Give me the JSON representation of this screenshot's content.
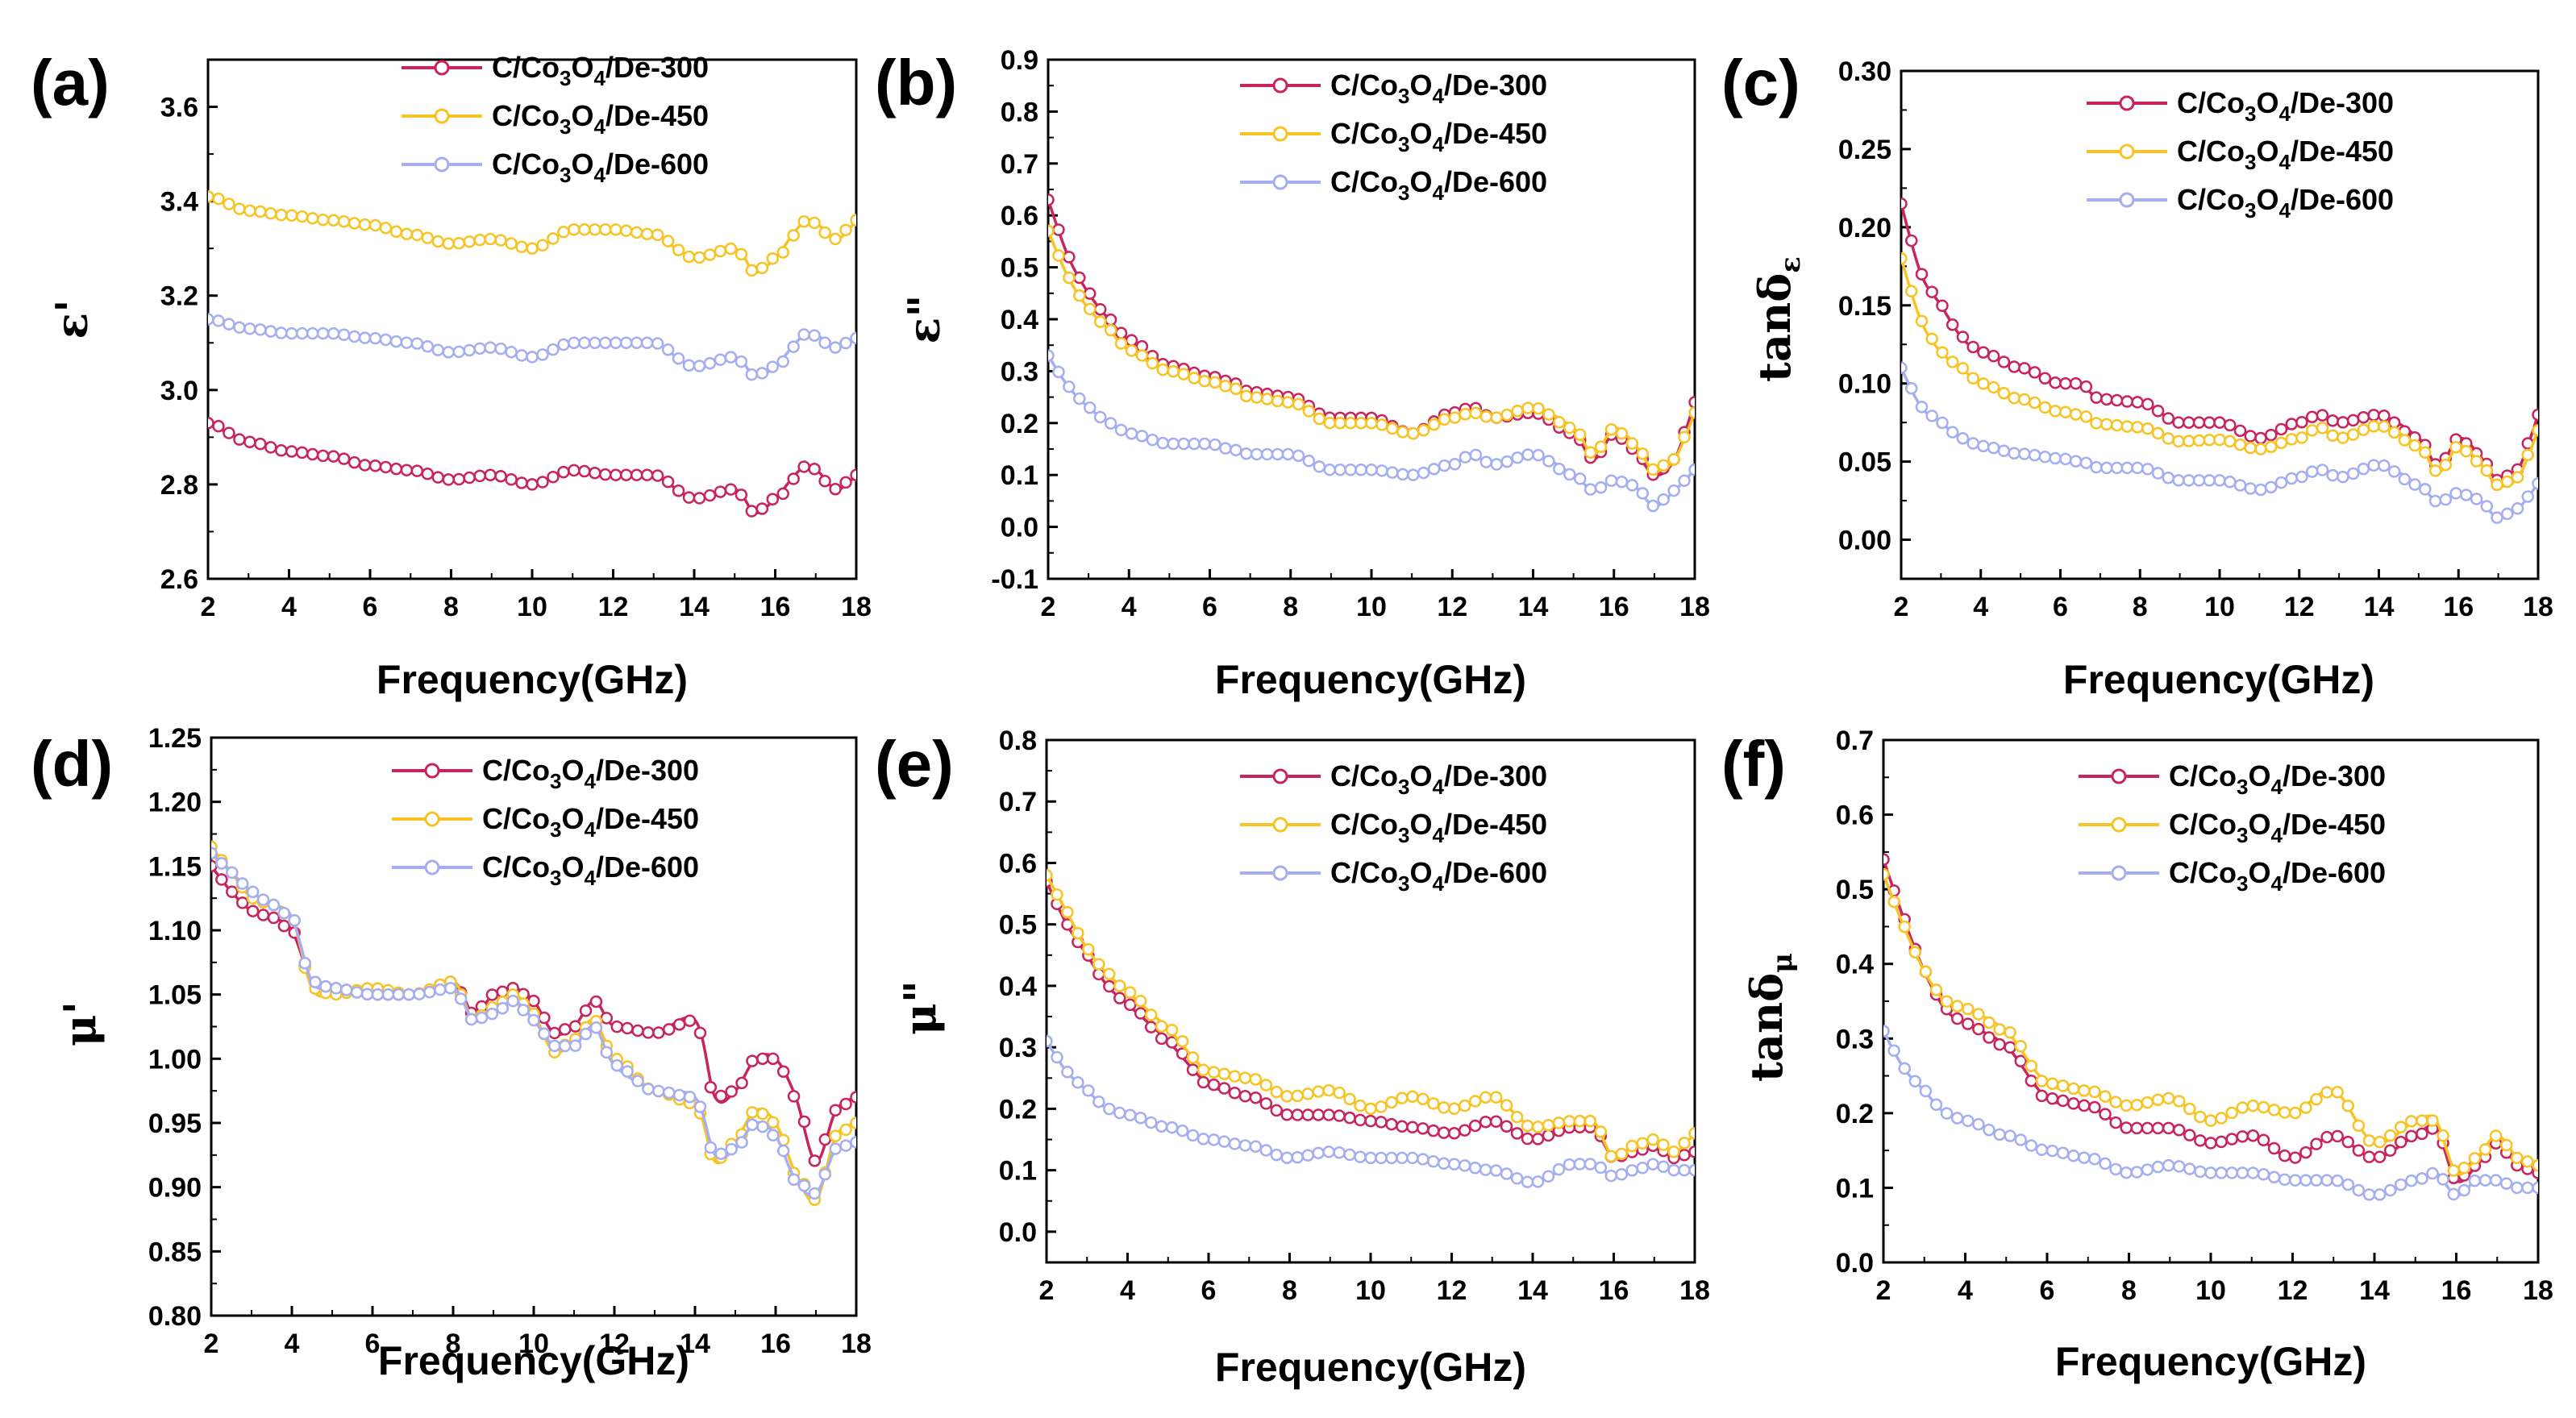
{
  "figure": {
    "panels": [
      "(a)",
      "(b)",
      "(c)",
      "(d)",
      "(e)",
      "(f)"
    ]
  },
  "legend_labels": [
    "C/Co3O4/De-300",
    "C/Co3O4/De-450",
    "C/Co3O4/De-600"
  ],
  "series_colors": {
    "De-300": "#c8245e",
    "De-450": "#f7c325",
    "De-600": "#a5aef0"
  },
  "chart_data": [
    {
      "type": "line",
      "panel": "(a)",
      "xlabel": "Frequency(GHz)",
      "ylabel": "ε'",
      "xlim": [
        2,
        18
      ],
      "ylim": [
        2.6,
        3.7
      ],
      "xticks": [
        2,
        4,
        6,
        8,
        10,
        12,
        14,
        16,
        18
      ],
      "yticks": [
        2.6,
        2.8,
        3.0,
        3.2,
        3.4,
        3.6
      ],
      "ytick_labels": [
        "2.6",
        "2.8",
        "3.0",
        "3.2",
        "3.4",
        "3.6"
      ],
      "x": [
        2,
        3,
        4,
        5,
        6,
        7,
        8,
        9,
        10,
        11,
        12,
        13,
        14,
        15,
        15.5,
        16,
        16.8,
        17.5,
        18
      ],
      "series": [
        {
          "name": "C/Co3O4/De-300",
          "values": [
            2.93,
            2.89,
            2.87,
            2.86,
            2.84,
            2.83,
            2.81,
            2.82,
            2.8,
            2.83,
            2.82,
            2.82,
            2.77,
            2.79,
            2.74,
            2.77,
            2.84,
            2.79,
            2.82
          ]
        },
        {
          "name": "C/Co3O4/De-450",
          "values": [
            3.41,
            3.38,
            3.37,
            3.36,
            3.35,
            3.33,
            3.31,
            3.32,
            3.3,
            3.34,
            3.34,
            3.33,
            3.28,
            3.3,
            3.25,
            3.28,
            3.36,
            3.32,
            3.36
          ]
        },
        {
          "name": "C/Co3O4/De-600",
          "values": [
            3.15,
            3.13,
            3.12,
            3.12,
            3.11,
            3.1,
            3.08,
            3.09,
            3.07,
            3.1,
            3.1,
            3.1,
            3.05,
            3.07,
            3.03,
            3.05,
            3.12,
            3.09,
            3.11
          ]
        }
      ]
    },
    {
      "type": "line",
      "panel": "(b)",
      "xlabel": "Frequency(GHz)",
      "ylabel": "ε\"",
      "xlim": [
        2,
        18
      ],
      "ylim": [
        -0.1,
        0.9
      ],
      "xticks": [
        2,
        4,
        6,
        8,
        10,
        12,
        14,
        16,
        18
      ],
      "yticks": [
        -0.1,
        0.0,
        0.1,
        0.2,
        0.3,
        0.4,
        0.5,
        0.6,
        0.7,
        0.8,
        0.9
      ],
      "ytick_labels": [
        "-0.1",
        "0.0",
        "0.1",
        "0.2",
        "0.3",
        "0.4",
        "0.5",
        "0.6",
        "0.7",
        "0.8",
        "0.9"
      ],
      "x": [
        2,
        2.5,
        3,
        3.5,
        4,
        5,
        6,
        6.5,
        7,
        8,
        9,
        10,
        11,
        12,
        12.5,
        13,
        14,
        15,
        15.5,
        16,
        16.5,
        17,
        17.5,
        18
      ],
      "series": [
        {
          "name": "C/Co3O4/De-300",
          "values": [
            0.63,
            0.52,
            0.45,
            0.4,
            0.36,
            0.31,
            0.29,
            0.28,
            0.26,
            0.25,
            0.21,
            0.21,
            0.18,
            0.22,
            0.23,
            0.21,
            0.22,
            0.18,
            0.13,
            0.18,
            0.15,
            0.1,
            0.13,
            0.24
          ]
        },
        {
          "name": "C/Co3O4/De-450",
          "values": [
            0.57,
            0.48,
            0.42,
            0.38,
            0.34,
            0.3,
            0.28,
            0.27,
            0.25,
            0.24,
            0.2,
            0.2,
            0.18,
            0.21,
            0.22,
            0.21,
            0.23,
            0.19,
            0.14,
            0.19,
            0.16,
            0.11,
            0.13,
            0.22
          ]
        },
        {
          "name": "C/Co3O4/De-600",
          "values": [
            0.33,
            0.27,
            0.23,
            0.2,
            0.18,
            0.16,
            0.16,
            0.15,
            0.14,
            0.14,
            0.11,
            0.11,
            0.1,
            0.12,
            0.14,
            0.12,
            0.14,
            0.1,
            0.07,
            0.09,
            0.08,
            0.04,
            0.07,
            0.11
          ]
        }
      ]
    },
    {
      "type": "line",
      "panel": "(c)",
      "xlabel": "Frequency(GHz)",
      "ylabel": "tanδε",
      "xlim": [
        2,
        18
      ],
      "ylim": [
        -0.025,
        0.3
      ],
      "xticks": [
        2,
        4,
        6,
        8,
        10,
        12,
        14,
        16,
        18
      ],
      "yticks": [
        0.0,
        0.05,
        0.1,
        0.15,
        0.2,
        0.25,
        0.3
      ],
      "ytick_labels": [
        "0.00",
        "0.05",
        "0.10",
        "0.15",
        "0.20",
        "0.25",
        "0.30"
      ],
      "x": [
        2,
        2.5,
        3,
        3.5,
        4,
        5,
        6,
        6.5,
        7,
        8,
        9,
        10,
        11,
        12,
        12.5,
        13,
        14,
        15,
        15.5,
        16,
        16.5,
        17,
        17.5,
        18
      ],
      "series": [
        {
          "name": "C/Co3O4/De-300",
          "values": [
            0.215,
            0.17,
            0.15,
            0.13,
            0.12,
            0.11,
            0.1,
            0.1,
            0.09,
            0.088,
            0.075,
            0.075,
            0.065,
            0.075,
            0.08,
            0.075,
            0.08,
            0.065,
            0.047,
            0.065,
            0.055,
            0.038,
            0.045,
            0.08
          ]
        },
        {
          "name": "C/Co3O4/De-450",
          "values": [
            0.18,
            0.14,
            0.12,
            0.11,
            0.1,
            0.09,
            0.082,
            0.08,
            0.074,
            0.072,
            0.063,
            0.064,
            0.058,
            0.065,
            0.072,
            0.065,
            0.073,
            0.06,
            0.043,
            0.06,
            0.05,
            0.035,
            0.04,
            0.07
          ]
        },
        {
          "name": "C/Co3O4/De-600",
          "values": [
            0.11,
            0.085,
            0.075,
            0.065,
            0.06,
            0.055,
            0.052,
            0.05,
            0.046,
            0.046,
            0.038,
            0.038,
            0.032,
            0.04,
            0.045,
            0.04,
            0.048,
            0.035,
            0.024,
            0.03,
            0.026,
            0.014,
            0.02,
            0.036
          ]
        }
      ]
    },
    {
      "type": "line",
      "panel": "(d)",
      "xlabel": "Frequency(GHz)",
      "ylabel": "μ'",
      "xlim": [
        2,
        18
      ],
      "ylim": [
        0.8,
        1.25
      ],
      "xticks": [
        2,
        4,
        6,
        8,
        10,
        12,
        14,
        16,
        18
      ],
      "yticks": [
        0.8,
        0.85,
        0.9,
        0.95,
        1.0,
        1.05,
        1.1,
        1.15,
        1.2,
        1.25
      ],
      "ytick_labels": [
        "0.80",
        "0.85",
        "0.90",
        "0.95",
        "1.00",
        "1.05",
        "1.10",
        "1.15",
        "1.20",
        "1.25"
      ],
      "x": [
        2,
        2.5,
        3,
        3.5,
        4,
        4.5,
        5,
        6,
        7,
        8,
        8.5,
        9,
        9.5,
        10,
        10.5,
        11,
        11.5,
        12,
        13,
        14,
        14.5,
        15,
        15.5,
        16,
        16.5,
        17,
        17.5,
        18
      ],
      "series": [
        {
          "name": "C/Co3O4/De-300",
          "values": [
            1.15,
            1.13,
            1.115,
            1.11,
            1.1,
            1.06,
            1.055,
            1.05,
            1.05,
            1.06,
            1.035,
            1.05,
            1.055,
            1.045,
            1.02,
            1.025,
            1.045,
            1.025,
            1.02,
            1.03,
            0.97,
            0.975,
            1.0,
            1.0,
            0.97,
            0.92,
            0.96,
            0.97
          ]
        },
        {
          "name": "C/Co3O4/De-450",
          "values": [
            1.165,
            1.145,
            1.125,
            1.12,
            1.11,
            1.055,
            1.05,
            1.055,
            1.05,
            1.06,
            1.03,
            1.04,
            1.05,
            1.035,
            1.005,
            1.015,
            1.03,
            1.0,
            0.975,
            0.965,
            0.92,
            0.935,
            0.96,
            0.95,
            0.91,
            0.89,
            0.94,
            0.95
          ]
        },
        {
          "name": "C/Co3O4/De-600",
          "values": [
            1.16,
            1.145,
            1.13,
            1.12,
            1.11,
            1.06,
            1.055,
            1.05,
            1.05,
            1.055,
            1.03,
            1.035,
            1.045,
            1.03,
            1.01,
            1.01,
            1.025,
            0.995,
            0.975,
            0.97,
            0.925,
            0.93,
            0.95,
            0.94,
            0.905,
            0.895,
            0.93,
            0.935
          ]
        }
      ]
    },
    {
      "type": "line",
      "panel": "(e)",
      "xlabel": "Frequency(GHz)",
      "ylabel": "μ\"",
      "xlim": [
        2,
        18
      ],
      "ylim": [
        -0.05,
        0.8
      ],
      "xticks": [
        2,
        4,
        6,
        8,
        10,
        12,
        14,
        16,
        18
      ],
      "yticks": [
        0.0,
        0.1,
        0.2,
        0.3,
        0.4,
        0.5,
        0.6,
        0.7,
        0.8
      ],
      "ytick_labels": [
        "0.0",
        "0.1",
        "0.2",
        "0.3",
        "0.4",
        "0.5",
        "0.6",
        "0.7",
        "0.8"
      ],
      "x": [
        2,
        2.5,
        3,
        3.5,
        4,
        5,
        6,
        7,
        8,
        9,
        10,
        11,
        12,
        13,
        14,
        15,
        15.5,
        16,
        16.5,
        17,
        17.5,
        18
      ],
      "series": [
        {
          "name": "C/Co3O4/De-300",
          "values": [
            0.57,
            0.5,
            0.45,
            0.4,
            0.37,
            0.31,
            0.24,
            0.22,
            0.19,
            0.19,
            0.18,
            0.17,
            0.16,
            0.18,
            0.15,
            0.17,
            0.17,
            0.12,
            0.13,
            0.14,
            0.12,
            0.13
          ]
        },
        {
          "name": "C/Co3O4/De-450",
          "values": [
            0.58,
            0.52,
            0.46,
            0.42,
            0.39,
            0.33,
            0.26,
            0.25,
            0.22,
            0.23,
            0.2,
            0.22,
            0.2,
            0.22,
            0.17,
            0.18,
            0.18,
            0.12,
            0.14,
            0.15,
            0.13,
            0.16
          ]
        },
        {
          "name": "C/Co3O4/De-600",
          "values": [
            0.31,
            0.26,
            0.23,
            0.2,
            0.19,
            0.17,
            0.15,
            0.14,
            0.12,
            0.13,
            0.12,
            0.12,
            0.11,
            0.1,
            0.08,
            0.11,
            0.11,
            0.09,
            0.1,
            0.11,
            0.1,
            0.1
          ]
        }
      ]
    },
    {
      "type": "line",
      "panel": "(f)",
      "xlabel": "Frequency(GHz)",
      "ylabel": "tanδμ",
      "xlim": [
        2,
        18
      ],
      "ylim": [
        0.0,
        0.7
      ],
      "xticks": [
        2,
        4,
        6,
        8,
        10,
        12,
        14,
        16,
        18
      ],
      "yticks": [
        0.0,
        0.1,
        0.2,
        0.3,
        0.4,
        0.5,
        0.6,
        0.7
      ],
      "ytick_labels": [
        "0.0",
        "0.1",
        "0.2",
        "0.3",
        "0.4",
        "0.5",
        "0.6",
        "0.7"
      ],
      "x": [
        2,
        2.5,
        3,
        3.5,
        4,
        5,
        6,
        7,
        8,
        9,
        10,
        11,
        12,
        13,
        14,
        15,
        15.5,
        16,
        16.5,
        17,
        17.5,
        18
      ],
      "series": [
        {
          "name": "C/Co3O4/De-300",
          "values": [
            0.54,
            0.46,
            0.39,
            0.34,
            0.32,
            0.29,
            0.22,
            0.21,
            0.18,
            0.18,
            0.16,
            0.17,
            0.14,
            0.17,
            0.14,
            0.17,
            0.18,
            0.11,
            0.13,
            0.16,
            0.13,
            0.12
          ]
        },
        {
          "name": "C/Co3O4/De-450",
          "values": [
            0.52,
            0.45,
            0.39,
            0.35,
            0.34,
            0.31,
            0.24,
            0.23,
            0.21,
            0.22,
            0.19,
            0.21,
            0.2,
            0.23,
            0.16,
            0.19,
            0.19,
            0.12,
            0.14,
            0.17,
            0.14,
            0.13
          ]
        },
        {
          "name": "C/Co3O4/De-600",
          "values": [
            0.31,
            0.26,
            0.23,
            0.2,
            0.19,
            0.17,
            0.15,
            0.14,
            0.12,
            0.13,
            0.12,
            0.12,
            0.11,
            0.11,
            0.09,
            0.11,
            0.12,
            0.09,
            0.11,
            0.11,
            0.1,
            0.1
          ]
        }
      ]
    }
  ]
}
